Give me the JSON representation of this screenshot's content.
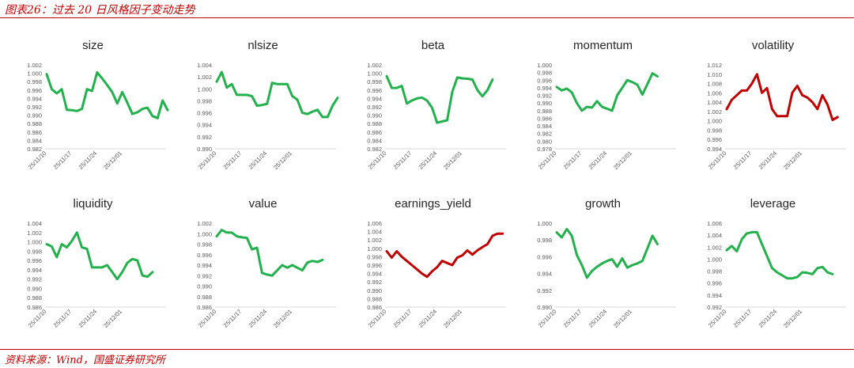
{
  "figure": {
    "title": "图表26：过去 20 日风格因子变动走势",
    "source": "资料来源：Wind，国盛证券研究所"
  },
  "colors": {
    "green": "#22b14c",
    "red": "#c00000",
    "axis": "#d9d9d9",
    "text": "#595959"
  },
  "chart_data": [
    {
      "type": "line",
      "title": "size",
      "color": "green",
      "ylim": [
        0.982,
        1.002
      ],
      "yticks": [
        "0.982",
        "0.984",
        "0.986",
        "0.988",
        "0.990",
        "0.992",
        "0.994",
        "0.996",
        "0.998",
        "1.000",
        "1.002"
      ],
      "xticks": [
        "25/11/10",
        "25/11/17",
        "25/11/24",
        "25/12/01"
      ],
      "xtick_index": [
        0,
        5,
        10,
        15
      ],
      "values": [
        0.9998,
        0.9962,
        0.9952,
        0.9962,
        0.9913,
        0.9912,
        0.991,
        0.9915,
        0.9962,
        0.9958,
        1.0002,
        0.9988,
        0.9972,
        0.9955,
        0.9928,
        0.9955,
        0.993,
        0.9903,
        0.9907,
        0.9915,
        0.9918,
        0.9898,
        0.9893,
        0.9935,
        0.9912
      ]
    },
    {
      "type": "line",
      "title": "nlsize",
      "color": "green",
      "ylim": [
        0.99,
        1.004
      ],
      "yticks": [
        "0.990",
        "0.992",
        "0.994",
        "0.996",
        "0.998",
        "1.000",
        "1.002",
        "1.004"
      ],
      "xticks": [
        "25/11/10",
        "25/11/17",
        "25/11/24",
        "25/12/01"
      ],
      "xtick_index": [
        0,
        5,
        10,
        15
      ],
      "values": [
        1.0012,
        1.0028,
        1.0002,
        1.0008,
        0.999,
        0.999,
        0.999,
        0.9988,
        0.9972,
        0.9973,
        0.9975,
        1.001,
        1.0008,
        1.0008,
        1.0008,
        0.9988,
        0.9982,
        0.996,
        0.9958,
        0.9962,
        0.9965,
        0.9953,
        0.9953,
        0.9972,
        0.9985
      ]
    },
    {
      "type": "line",
      "title": "beta",
      "color": "green",
      "ylim": [
        0.982,
        1.002
      ],
      "yticks": [
        "0.982",
        "0.984",
        "0.986",
        "0.988",
        "0.990",
        "0.992",
        "0.994",
        "0.996",
        "0.998",
        "1.000",
        "1.002"
      ],
      "xticks": [
        "25/11/10",
        "25/11/17",
        "25/11/24",
        "25/12/01"
      ],
      "xtick_index": [
        0,
        5,
        10,
        15
      ],
      "values": [
        0.9993,
        0.9965,
        0.9965,
        0.997,
        0.9928,
        0.9935,
        0.994,
        0.9942,
        0.9935,
        0.9918,
        0.9882,
        0.9885,
        0.9888,
        0.9955,
        0.999,
        0.9988,
        0.9987,
        0.9985,
        0.996,
        0.9945,
        0.996,
        0.9985
      ]
    },
    {
      "type": "line",
      "title": "momentum",
      "color": "green",
      "ylim": [
        0.978,
        1.0
      ],
      "yticks": [
        "0.978",
        "0.980",
        "0.982",
        "0.984",
        "0.986",
        "0.988",
        "0.990",
        "0.992",
        "0.994",
        "0.996",
        "0.998",
        "1.000"
      ],
      "xticks": [
        "25/11/10",
        "25/11/17",
        "25/11/24",
        "25/12/01"
      ],
      "xtick_index": [
        0,
        5,
        10,
        15
      ],
      "values": [
        0.9942,
        0.9933,
        0.9938,
        0.9928,
        0.99,
        0.988,
        0.989,
        0.9888,
        0.9905,
        0.989,
        0.9885,
        0.988,
        0.992,
        0.994,
        0.996,
        0.9955,
        0.9948,
        0.9922,
        0.995,
        0.9978,
        0.997
      ]
    },
    {
      "type": "line",
      "title": "volatility",
      "color": "red",
      "ylim": [
        0.994,
        1.012
      ],
      "yticks": [
        "0.994",
        "0.996",
        "0.998",
        "1.000",
        "1.002",
        "1.004",
        "1.006",
        "1.008",
        "1.010",
        "1.012"
      ],
      "xticks": [
        "25/11/10",
        "25/11/17",
        "25/11/24",
        "25/12/01"
      ],
      "xtick_index": [
        0,
        5,
        10,
        15
      ],
      "values": [
        1.0025,
        1.0045,
        1.0055,
        1.0065,
        1.0065,
        1.008,
        1.01,
        1.006,
        1.007,
        1.0025,
        1.001,
        1.001,
        1.001,
        1.006,
        1.0075,
        1.0055,
        1.005,
        1.004,
        1.0025,
        1.0055,
        1.0035,
        1.0002,
        1.0008
      ]
    },
    {
      "type": "line",
      "title": "liquidity",
      "color": "green",
      "ylim": [
        0.986,
        1.004
      ],
      "yticks": [
        "0.986",
        "0.988",
        "0.990",
        "0.992",
        "0.994",
        "0.996",
        "0.998",
        "1.000",
        "1.002",
        "1.004"
      ],
      "xticks": [
        "25/11/10",
        "25/11/17",
        "25/11/24",
        "25/12/01"
      ],
      "xtick_index": [
        0,
        5,
        10,
        15
      ],
      "values": [
        0.9995,
        0.999,
        0.9967,
        0.9995,
        0.9988,
        1.0002,
        1.002,
        0.9988,
        0.9985,
        0.9945,
        0.9945,
        0.9945,
        0.995,
        0.9935,
        0.992,
        0.9935,
        0.9955,
        0.9963,
        0.996,
        0.9928,
        0.9925,
        0.9935
      ]
    },
    {
      "type": "line",
      "title": "value",
      "color": "green",
      "ylim": [
        0.986,
        1.002
      ],
      "yticks": [
        "0.986",
        "0.988",
        "0.990",
        "0.992",
        "0.994",
        "0.996",
        "0.998",
        "1.000",
        "1.002"
      ],
      "xticks": [
        "25/11/10",
        "25/11/17",
        "25/11/24",
        "25/12/01"
      ],
      "xtick_index": [
        0,
        5,
        10,
        15
      ],
      "values": [
        0.9995,
        1.0007,
        1.0002,
        1.0002,
        0.9995,
        0.9993,
        0.9992,
        0.997,
        0.9973,
        0.9925,
        0.9922,
        0.992,
        0.993,
        0.994,
        0.9935,
        0.994,
        0.9935,
        0.993,
        0.9945,
        0.9948,
        0.9946,
        0.995
      ]
    },
    {
      "type": "line",
      "title": "earnings_yield",
      "color": "red",
      "ylim": [
        0.986,
        1.006
      ],
      "yticks": [
        "0.986",
        "0.988",
        "0.990",
        "0.992",
        "0.994",
        "0.996",
        "0.998",
        "1.000",
        "1.002",
        "1.004",
        "1.006"
      ],
      "xticks": [
        "25/11/10",
        "25/11/17",
        "25/11/24",
        "25/12/01"
      ],
      "xtick_index": [
        0,
        5,
        10,
        15
      ],
      "values": [
        0.9993,
        0.9978,
        0.9993,
        0.998,
        0.997,
        0.996,
        0.995,
        0.994,
        0.9932,
        0.9945,
        0.9955,
        0.997,
        0.9965,
        0.996,
        0.9978,
        0.9983,
        0.9995,
        0.9985,
        0.9995,
        1.0003,
        1.001,
        1.003,
        1.0035,
        1.0035
      ]
    },
    {
      "type": "line",
      "title": "growth",
      "color": "green",
      "ylim": [
        0.99,
        1.0
      ],
      "yticks": [
        "0.990",
        "0.992",
        "0.994",
        "0.996",
        "0.998",
        "1.000"
      ],
      "xticks": [
        "25/11/10",
        "25/11/17",
        "25/11/24",
        "25/12/01"
      ],
      "xtick_index": [
        0,
        5,
        10,
        15
      ],
      "values": [
        0.9989,
        0.9983,
        0.9993,
        0.9985,
        0.9962,
        0.995,
        0.9935,
        0.9943,
        0.9948,
        0.9952,
        0.9955,
        0.9957,
        0.9948,
        0.9958,
        0.9947,
        0.995,
        0.9952,
        0.9955,
        0.997,
        0.9985,
        0.9975
      ]
    },
    {
      "type": "line",
      "title": "leverage",
      "color": "green",
      "ylim": [
        0.992,
        1.006
      ],
      "yticks": [
        "0.992",
        "0.994",
        "0.996",
        "0.998",
        "1.000",
        "1.002",
        "1.004",
        "1.006"
      ],
      "xticks": [
        "25/11/10",
        "25/11/17",
        "25/11/24",
        "25/12/01"
      ],
      "xtick_index": [
        0,
        5,
        10,
        15
      ],
      "values": [
        1.0015,
        1.0022,
        1.0013,
        1.0033,
        1.0043,
        1.0045,
        1.0045,
        1.0025,
        1.0005,
        0.9985,
        0.9978,
        0.9973,
        0.9968,
        0.9968,
        0.997,
        0.9978,
        0.9977,
        0.9975,
        0.9985,
        0.9987,
        0.9978,
        0.9975
      ]
    }
  ]
}
